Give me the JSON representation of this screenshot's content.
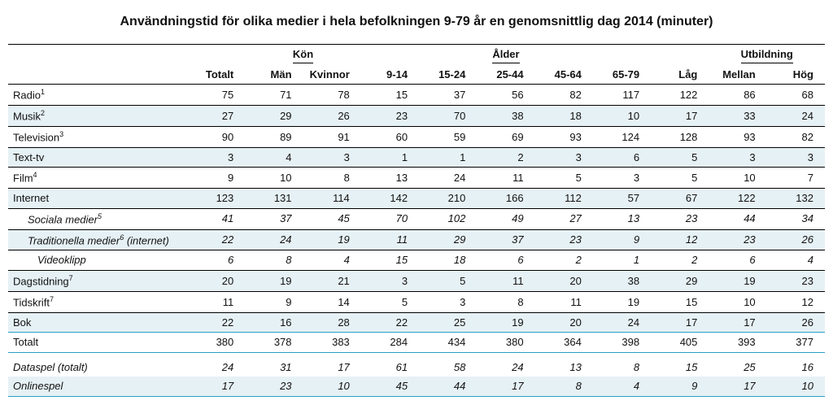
{
  "title": "Användningstid för olika medier i hela befolkningen 9-79 år en genomsnittlig dag 2014 (minuter)",
  "groupHeaders": {
    "kon": "Kön",
    "alder": "Ålder",
    "utbildning": "Utbildning"
  },
  "columns": {
    "totalt": "Totalt",
    "man": "Män",
    "kvinnor": "Kvinnor",
    "a9_14": "9-14",
    "a15_24": "15-24",
    "a25_44": "25-44",
    "a45_64": "45-64",
    "a65_79": "65-79",
    "lag": "Låg",
    "mellan": "Mellan",
    "hog": "Hög"
  },
  "rows": {
    "radio": {
      "label": "Radio",
      "sup": "1",
      "v": [
        75,
        71,
        78,
        15,
        37,
        56,
        82,
        117,
        122,
        86,
        68
      ]
    },
    "musik": {
      "label": "Musik",
      "sup": "2",
      "v": [
        27,
        29,
        26,
        23,
        70,
        38,
        18,
        10,
        17,
        33,
        24
      ]
    },
    "television": {
      "label": "Television",
      "sup": "3",
      "v": [
        90,
        89,
        91,
        60,
        59,
        69,
        93,
        124,
        128,
        93,
        82
      ]
    },
    "texttv": {
      "label": "Text-tv",
      "v": [
        3,
        4,
        3,
        1,
        1,
        2,
        3,
        6,
        5,
        3,
        3
      ]
    },
    "film": {
      "label": "Film",
      "sup": "4",
      "v": [
        9,
        10,
        8,
        13,
        24,
        11,
        5,
        3,
        5,
        10,
        7
      ]
    },
    "internet": {
      "label": "Internet",
      "v": [
        123,
        131,
        114,
        142,
        210,
        166,
        112,
        57,
        67,
        122,
        132
      ]
    },
    "sociala": {
      "label": "Sociala medier",
      "sup": "5",
      "v": [
        41,
        37,
        45,
        70,
        102,
        49,
        27,
        13,
        23,
        44,
        34
      ]
    },
    "traditionella": {
      "label": "Traditionella medier",
      "sup": "6",
      "suffix": " (internet)",
      "v": [
        22,
        24,
        19,
        11,
        29,
        37,
        23,
        9,
        12,
        23,
        26
      ]
    },
    "videoklipp": {
      "label": "Videoklipp",
      "v": [
        6,
        8,
        4,
        15,
        18,
        6,
        2,
        1,
        2,
        6,
        4
      ]
    },
    "dagstidning": {
      "label": "Dagstidning",
      "sup": "7",
      "v": [
        20,
        19,
        21,
        3,
        5,
        11,
        20,
        38,
        29,
        19,
        23
      ]
    },
    "tidskrift": {
      "label": "Tidskrift",
      "sup": "7",
      "v": [
        11,
        9,
        14,
        5,
        3,
        8,
        11,
        19,
        15,
        10,
        12
      ]
    },
    "bok": {
      "label": "Bok",
      "v": [
        22,
        16,
        28,
        22,
        25,
        19,
        20,
        24,
        17,
        17,
        26
      ]
    },
    "totalt": {
      "label": "Totalt",
      "v": [
        380,
        378,
        383,
        284,
        434,
        380,
        364,
        398,
        405,
        393,
        377
      ]
    },
    "dataspel": {
      "label": "Dataspel (totalt)",
      "v": [
        24,
        31,
        17,
        61,
        58,
        24,
        13,
        8,
        15,
        25,
        16
      ]
    },
    "onlinespel": {
      "label": "Onlinespel",
      "v": [
        17,
        23,
        10,
        45,
        44,
        17,
        8,
        4,
        9,
        17,
        10
      ]
    }
  },
  "colors": {
    "stripe": "#e6f1f5",
    "rule": "#27a0c4",
    "text": "#111111",
    "background": "#ffffff"
  }
}
